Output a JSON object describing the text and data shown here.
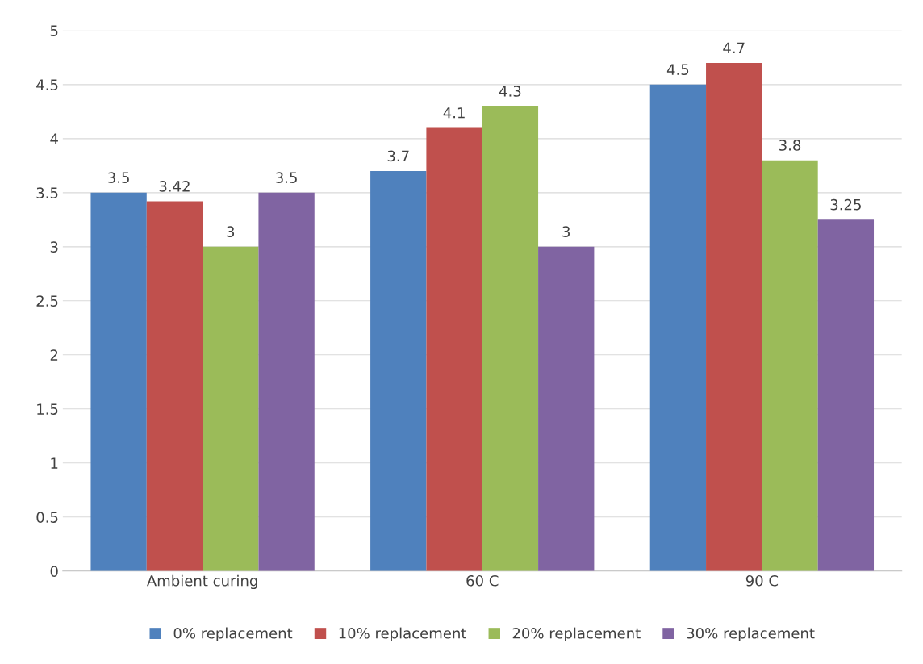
{
  "chart_data": {
    "type": "bar",
    "categories": [
      "Ambient curing",
      "60 C",
      "90 C"
    ],
    "series": [
      {
        "name": "0% replacement",
        "color": "#4f81bd",
        "values": [
          3.5,
          3.7,
          4.5
        ]
      },
      {
        "name": "10% replacement",
        "color": "#c0504d",
        "values": [
          3.42,
          4.1,
          4.7
        ]
      },
      {
        "name": "20% replacement",
        "color": "#9bbb59",
        "values": [
          3,
          4.3,
          3.8
        ]
      },
      {
        "name": "30% replacement",
        "color": "#8064a2",
        "values": [
          3.5,
          3,
          3.25
        ]
      }
    ],
    "ylim": [
      0,
      5
    ],
    "yticks": [
      0,
      0.5,
      1,
      1.5,
      2,
      2.5,
      3,
      3.5,
      4,
      4.5,
      5
    ],
    "grid": "y",
    "legend": "bottom",
    "data_labels": true
  }
}
